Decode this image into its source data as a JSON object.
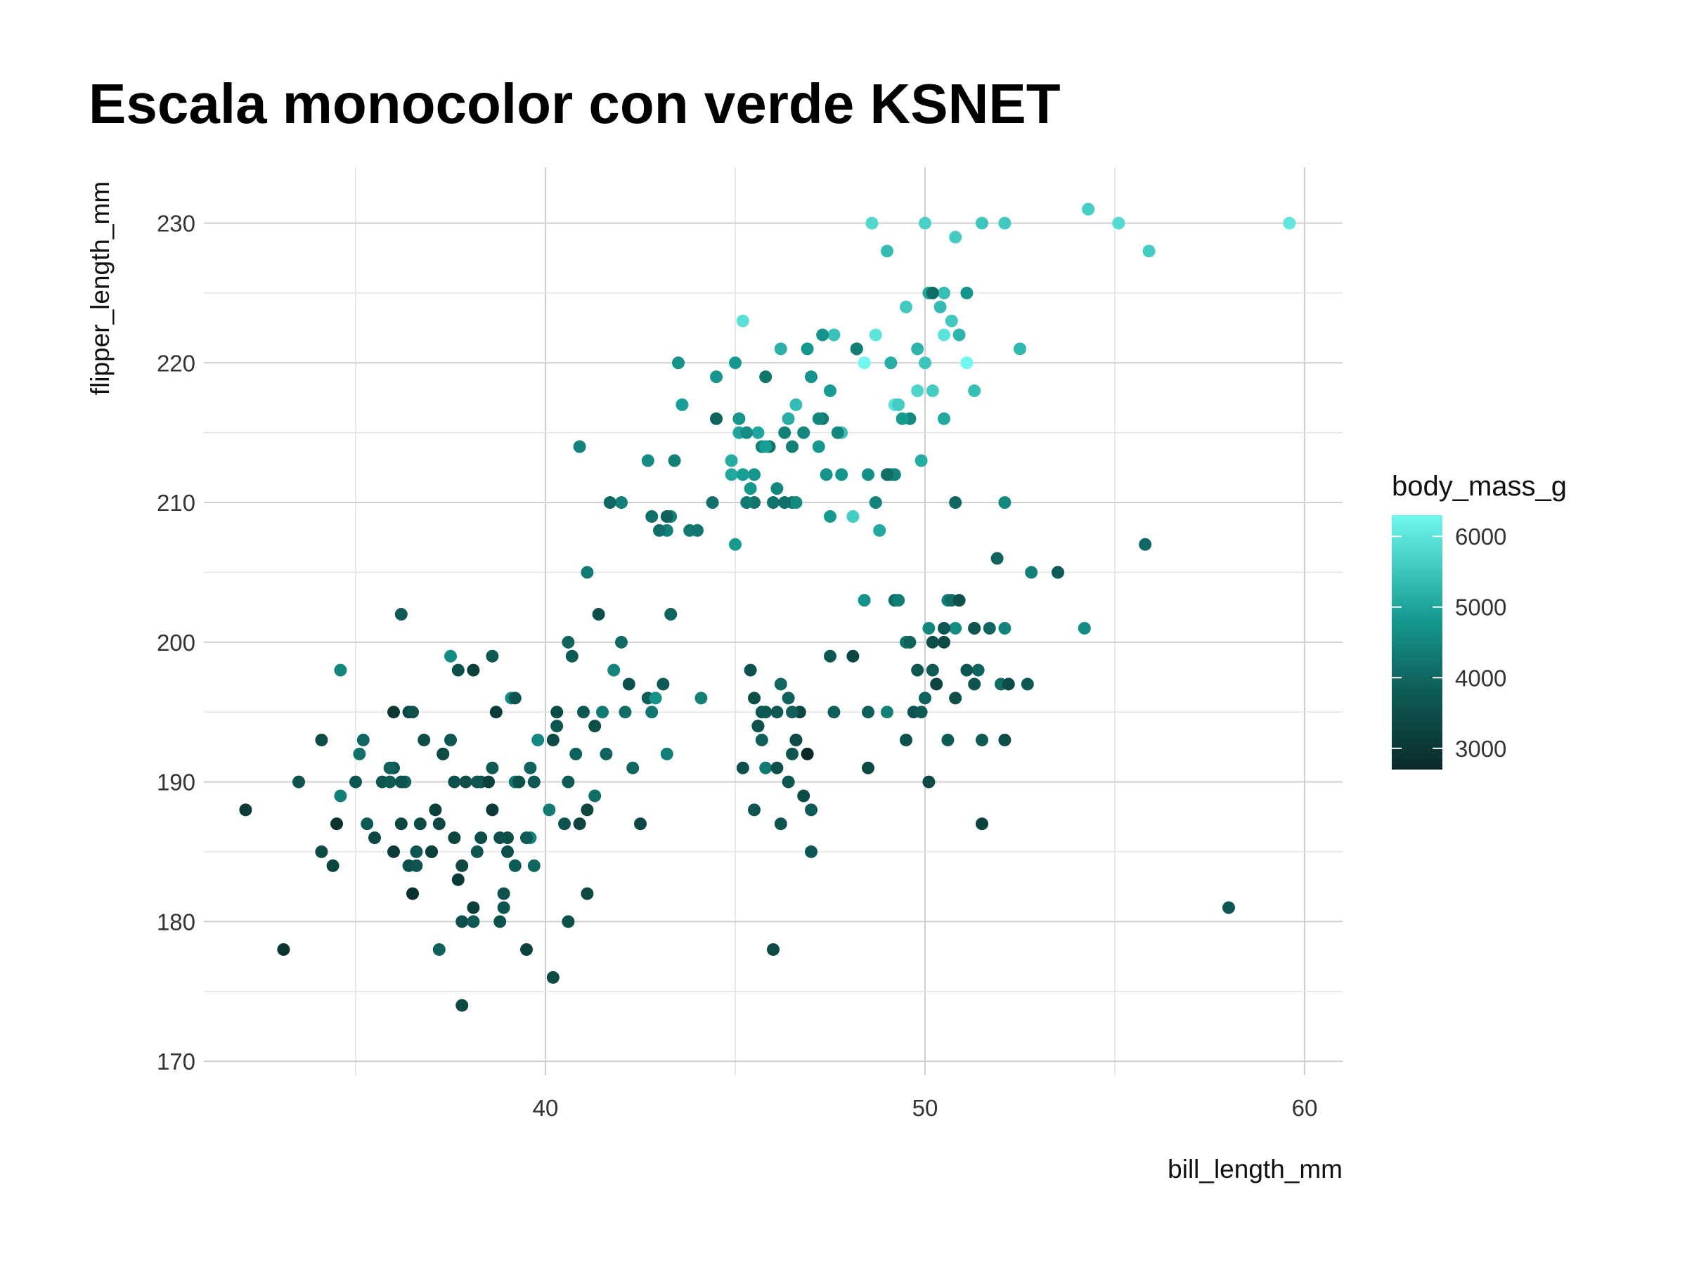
{
  "chart_data": {
    "type": "scatter",
    "title": "Escala monocolor con verde KSNET",
    "xlabel": "bill_length_mm",
    "ylabel": "flipper_length_mm",
    "xlim": [
      31,
      61
    ],
    "ylim": [
      169,
      234
    ],
    "xticks": [
      40,
      50,
      60
    ],
    "yticks": [
      170,
      180,
      190,
      200,
      210,
      220,
      230
    ],
    "grid": true,
    "legend": {
      "title": "body_mass_g",
      "placement": "right",
      "range": [
        2700,
        6300
      ],
      "ticks": [
        3000,
        4000,
        5000,
        6000
      ],
      "color_low": "#0a2a28",
      "color_high": "#6ff7f0"
    },
    "points": [
      [
        32.1,
        188,
        3050
      ],
      [
        33.1,
        178,
        2900
      ],
      [
        33.5,
        190,
        3600
      ],
      [
        34.1,
        185,
        3400
      ],
      [
        34.1,
        193,
        3475
      ],
      [
        34.4,
        184,
        3325
      ],
      [
        34.5,
        187,
        2900
      ],
      [
        34.6,
        189,
        4400
      ],
      [
        34.6,
        198,
        4500
      ],
      [
        35.0,
        190,
        3700
      ],
      [
        35.1,
        192,
        4150
      ],
      [
        35.2,
        193,
        4000
      ],
      [
        35.3,
        187,
        3800
      ],
      [
        35.5,
        186,
        3350
      ],
      [
        35.7,
        190,
        3650
      ],
      [
        35.9,
        190,
        3800
      ],
      [
        36.0,
        185,
        3100
      ],
      [
        36.0,
        191,
        3700
      ],
      [
        36.0,
        195,
        3000
      ],
      [
        36.2,
        187,
        3300
      ],
      [
        36.2,
        202,
        3750
      ],
      [
        36.3,
        190,
        3900
      ],
      [
        36.4,
        184,
        3550
      ],
      [
        36.5,
        182,
        2850
      ],
      [
        36.6,
        185,
        3700
      ],
      [
        36.7,
        187,
        3450
      ],
      [
        36.8,
        193,
        3500
      ],
      [
        37.0,
        185,
        3000
      ],
      [
        37.1,
        188,
        3200
      ],
      [
        37.2,
        178,
        3900
      ],
      [
        37.3,
        192,
        3300
      ],
      [
        37.5,
        199,
        4600
      ],
      [
        37.6,
        190,
        3600
      ],
      [
        37.7,
        183,
        3075
      ],
      [
        37.8,
        180,
        3550
      ],
      [
        37.8,
        184,
        3400
      ],
      [
        37.8,
        174,
        3400
      ],
      [
        37.9,
        190,
        3500
      ],
      [
        38.1,
        181,
        3175
      ],
      [
        38.1,
        198,
        3200
      ],
      [
        38.2,
        185,
        3700
      ],
      [
        38.3,
        190,
        3600
      ],
      [
        38.5,
        190,
        3200
      ],
      [
        38.6,
        188,
        3050
      ],
      [
        38.6,
        199,
        3750
      ],
      [
        38.7,
        195,
        3100
      ],
      [
        38.8,
        180,
        3600
      ],
      [
        38.9,
        181,
        3625
      ],
      [
        39.0,
        185,
        3550
      ],
      [
        39.1,
        196,
        4550
      ],
      [
        39.2,
        190,
        4250
      ],
      [
        39.3,
        190,
        3550
      ],
      [
        39.5,
        178,
        3250
      ],
      [
        39.6,
        186,
        4450
      ],
      [
        39.6,
        191,
        3900
      ],
      [
        39.7,
        184,
        4000
      ],
      [
        39.8,
        193,
        4550
      ],
      [
        40.1,
        188,
        4300
      ],
      [
        40.2,
        176,
        3450
      ],
      [
        40.3,
        195,
        3450
      ],
      [
        40.5,
        187,
        3600
      ],
      [
        40.6,
        180,
        3550
      ],
      [
        40.7,
        199,
        3800
      ],
      [
        40.8,
        192,
        3900
      ],
      [
        41.0,
        195,
        3700
      ],
      [
        41.1,
        182,
        3375
      ],
      [
        41.1,
        205,
        4300
      ],
      [
        41.3,
        194,
        3500
      ],
      [
        41.4,
        202,
        3500
      ],
      [
        41.5,
        195,
        4300
      ],
      [
        41.8,
        198,
        4450
      ],
      [
        42.0,
        200,
        4050
      ],
      [
        42.2,
        197,
        3550
      ],
      [
        42.3,
        191,
        4000
      ],
      [
        42.5,
        187,
        3350
      ],
      [
        42.7,
        196,
        3850
      ],
      [
        42.8,
        195,
        4250
      ],
      [
        42.9,
        196,
        4700
      ],
      [
        43.1,
        197,
        3800
      ],
      [
        43.2,
        192,
        4400
      ],
      [
        43.3,
        202,
        3950
      ],
      [
        44.1,
        196,
        4400
      ],
      [
        36.4,
        195,
        3325
      ],
      [
        36.6,
        184,
        3650
      ],
      [
        37.0,
        185,
        3200
      ],
      [
        37.7,
        198,
        3500
      ],
      [
        38.9,
        182,
        3600
      ],
      [
        39.0,
        186,
        3500
      ],
      [
        40.3,
        194,
        3700
      ],
      [
        40.9,
        214,
        4450
      ],
      [
        41.1,
        188,
        3300
      ],
      [
        41.6,
        192,
        3950
      ],
      [
        36.2,
        190,
        3650
      ],
      [
        38.1,
        180,
        3725
      ],
      [
        39.7,
        190,
        3750
      ],
      [
        40.2,
        193,
        3400
      ],
      [
        40.6,
        200,
        3950
      ],
      [
        37.3,
        192,
        3450
      ],
      [
        35.9,
        191,
        3900
      ],
      [
        38.6,
        191,
        3800
      ],
      [
        39.2,
        196,
        3675
      ],
      [
        38.8,
        186,
        3525
      ],
      [
        42.1,
        195,
        4100
      ],
      [
        37.5,
        193,
        3700
      ],
      [
        37.6,
        186,
        3300
      ],
      [
        39.5,
        186,
        3800
      ],
      [
        40.9,
        187,
        3300
      ],
      [
        36.5,
        195,
        3600
      ],
      [
        38.2,
        190,
        3650
      ],
      [
        39.2,
        184,
        3800
      ],
      [
        40.6,
        190,
        3800
      ],
      [
        37.2,
        187,
        3350
      ],
      [
        41.3,
        189,
        4100
      ],
      [
        38.3,
        186,
        3475
      ],
      [
        45.1,
        215,
        5000
      ],
      [
        46.1,
        211,
        4500
      ],
      [
        46.5,
        210,
        4200
      ],
      [
        47.3,
        216,
        4300
      ],
      [
        48.2,
        221,
        4300
      ],
      [
        48.7,
        210,
        4450
      ],
      [
        49.1,
        212,
        4625
      ],
      [
        49.6,
        216,
        4550
      ],
      [
        50.0,
        230,
        5700
      ],
      [
        50.5,
        225,
        5400
      ],
      [
        51.1,
        220,
        6300
      ],
      [
        52.1,
        230,
        5550
      ],
      [
        52.5,
        221,
        5300
      ],
      [
        54.3,
        231,
        5650
      ],
      [
        55.1,
        230,
        5850
      ],
      [
        55.9,
        228,
        5600
      ],
      [
        59.6,
        230,
        6050
      ],
      [
        45.2,
        223,
        5950
      ],
      [
        46.3,
        215,
        4400
      ],
      [
        47.5,
        209,
        4825
      ],
      [
        48.4,
        220,
        6300
      ],
      [
        49.2,
        217,
        5950
      ],
      [
        49.8,
        218,
        5750
      ],
      [
        50.2,
        218,
        5600
      ],
      [
        50.4,
        224,
        5350
      ],
      [
        50.5,
        222,
        6000
      ],
      [
        50.8,
        229,
        5600
      ],
      [
        51.3,
        218,
        5400
      ],
      [
        49.5,
        224,
        5550
      ],
      [
        49.0,
        228,
        5350
      ],
      [
        48.6,
        230,
        5800
      ],
      [
        48.7,
        222,
        6000
      ],
      [
        49.9,
        213,
        5100
      ],
      [
        50.1,
        225,
        5000
      ],
      [
        51.5,
        230,
        5500
      ],
      [
        43.3,
        209,
        4400
      ],
      [
        43.4,
        213,
        4400
      ],
      [
        43.5,
        220,
        4700
      ],
      [
        44.5,
        219,
        4750
      ],
      [
        44.9,
        213,
        5100
      ],
      [
        45.0,
        220,
        4800
      ],
      [
        45.4,
        211,
        4800
      ],
      [
        45.5,
        210,
        4200
      ],
      [
        45.8,
        219,
        4200
      ],
      [
        46.2,
        221,
        5200
      ],
      [
        46.8,
        215,
        4500
      ],
      [
        47.0,
        219,
        4700
      ],
      [
        47.2,
        214,
        4800
      ],
      [
        47.8,
        215,
        5400
      ],
      [
        48.1,
        209,
        5600
      ],
      [
        48.5,
        212,
        4650
      ],
      [
        48.8,
        208,
        5050
      ],
      [
        49.3,
        217,
        5600
      ],
      [
        49.4,
        216,
        4850
      ],
      [
        50.0,
        220,
        5500
      ],
      [
        50.7,
        223,
        5550
      ],
      [
        50.9,
        222,
        5250
      ],
      [
        46.5,
        214,
        4400
      ],
      [
        45.3,
        210,
        4300
      ],
      [
        42.7,
        213,
        4600
      ],
      [
        42.8,
        209,
        4150
      ],
      [
        43.2,
        208,
        4400
      ],
      [
        43.6,
        217,
        4900
      ],
      [
        43.8,
        208,
        4300
      ],
      [
        44.0,
        208,
        4200
      ],
      [
        45.0,
        207,
        4850
      ],
      [
        45.5,
        212,
        4750
      ],
      [
        46.4,
        216,
        5150
      ],
      [
        46.6,
        217,
        5350
      ],
      [
        47.4,
        212,
        4725
      ],
      [
        47.6,
        222,
        5450
      ],
      [
        48.2,
        221,
        4350
      ],
      [
        49.1,
        220,
        5150
      ],
      [
        50.2,
        225,
        4100
      ],
      [
        50.5,
        216,
        5050
      ],
      [
        49.8,
        221,
        5250
      ],
      [
        51.1,
        225,
        4750
      ],
      [
        45.7,
        214,
        4400
      ],
      [
        46.0,
        210,
        4200
      ],
      [
        47.5,
        218,
        4875
      ],
      [
        46.9,
        221,
        4800
      ],
      [
        45.2,
        212,
        4900
      ],
      [
        44.5,
        216,
        3900
      ],
      [
        44.4,
        210,
        4150
      ],
      [
        45.6,
        215,
        5000
      ],
      [
        45.9,
        214,
        4200
      ],
      [
        46.6,
        210,
        4550
      ],
      [
        47.3,
        222,
        4700
      ],
      [
        42.0,
        210,
        4400
      ],
      [
        41.7,
        210,
        4000
      ],
      [
        43.0,
        208,
        4100
      ],
      [
        43.2,
        209,
        3900
      ],
      [
        44.9,
        212,
        5050
      ],
      [
        45.1,
        216,
        4750
      ],
      [
        45.3,
        215,
        4600
      ],
      [
        45.8,
        214,
        4900
      ],
      [
        46.3,
        210,
        4150
      ],
      [
        47.2,
        216,
        4500
      ],
      [
        47.7,
        215,
        4500
      ],
      [
        47.8,
        212,
        4750
      ],
      [
        49.2,
        212,
        4475
      ],
      [
        50.8,
        210,
        4000
      ],
      [
        52.1,
        210,
        4550
      ],
      [
        48.4,
        203,
        4700
      ],
      [
        49.5,
        200,
        4200
      ],
      [
        50.1,
        201,
        4500
      ],
      [
        50.6,
        203,
        4350
      ],
      [
        50.8,
        201,
        4600
      ],
      [
        51.3,
        201,
        4000
      ],
      [
        51.7,
        201,
        3950
      ],
      [
        52.1,
        201,
        4450
      ],
      [
        53.5,
        205,
        4500
      ],
      [
        54.2,
        201,
        4600
      ],
      [
        52.8,
        205,
        4400
      ],
      [
        45.4,
        198,
        3600
      ],
      [
        45.5,
        196,
        3500
      ],
      [
        45.6,
        194,
        3525
      ],
      [
        45.7,
        195,
        3650
      ],
      [
        45.8,
        191,
        4300
      ],
      [
        46.1,
        195,
        3750
      ],
      [
        46.2,
        187,
        3650
      ],
      [
        46.4,
        190,
        3700
      ],
      [
        46.5,
        192,
        3650
      ],
      [
        46.6,
        193,
        3800
      ],
      [
        46.7,
        195,
        3300
      ],
      [
        46.8,
        189,
        3450
      ],
      [
        46.9,
        192,
        2700
      ],
      [
        47.0,
        185,
        3700
      ],
      [
        47.5,
        199,
        3725
      ],
      [
        47.6,
        195,
        3850
      ],
      [
        48.1,
        199,
        3325
      ],
      [
        48.5,
        191,
        3400
      ],
      [
        49.0,
        195,
        4400
      ],
      [
        49.2,
        203,
        4050
      ],
      [
        49.3,
        203,
        4350
      ],
      [
        49.5,
        193,
        3600
      ],
      [
        49.6,
        200,
        3900
      ],
      [
        49.7,
        195,
        3600
      ],
      [
        49.8,
        198,
        3700
      ],
      [
        50.0,
        196,
        3900
      ],
      [
        50.1,
        190,
        3400
      ],
      [
        50.2,
        198,
        3775
      ],
      [
        50.3,
        197,
        3300
      ],
      [
        50.5,
        200,
        3400
      ],
      [
        50.6,
        193,
        3800
      ],
      [
        50.7,
        203,
        4050
      ],
      [
        50.8,
        196,
        3500
      ],
      [
        50.9,
        203,
        3550
      ],
      [
        51.3,
        197,
        3650
      ],
      [
        51.4,
        198,
        3950
      ],
      [
        51.5,
        187,
        3250
      ],
      [
        51.9,
        206,
        3950
      ],
      [
        52.0,
        197,
        4050
      ],
      [
        52.2,
        197,
        3450
      ],
      [
        52.7,
        197,
        3725
      ],
      [
        53.5,
        205,
        3800
      ],
      [
        55.8,
        207,
        4000
      ],
      [
        58.0,
        181,
        3700
      ],
      [
        46.0,
        178,
        3400
      ],
      [
        45.6,
        194,
        3600
      ],
      [
        46.1,
        191,
        3550
      ],
      [
        45.8,
        195,
        3750
      ],
      [
        46.6,
        193,
        3400
      ],
      [
        46.4,
        196,
        3900
      ],
      [
        49.9,
        195,
        3800
      ],
      [
        51.5,
        193,
        3800
      ],
      [
        51.3,
        201,
        3650
      ],
      [
        45.5,
        188,
        3625
      ],
      [
        45.7,
        193,
        3850
      ],
      [
        46.5,
        195,
        3850
      ],
      [
        47.0,
        188,
        3800
      ],
      [
        48.5,
        195,
        3850
      ],
      [
        45.2,
        191,
        3550
      ],
      [
        46.2,
        197,
        4000
      ],
      [
        49.0,
        212,
        4100
      ],
      [
        50.5,
        201,
        3700
      ],
      [
        50.2,
        200,
        3500
      ],
      [
        52.1,
        193,
        3500
      ],
      [
        51.1,
        198,
        3650
      ]
    ]
  }
}
